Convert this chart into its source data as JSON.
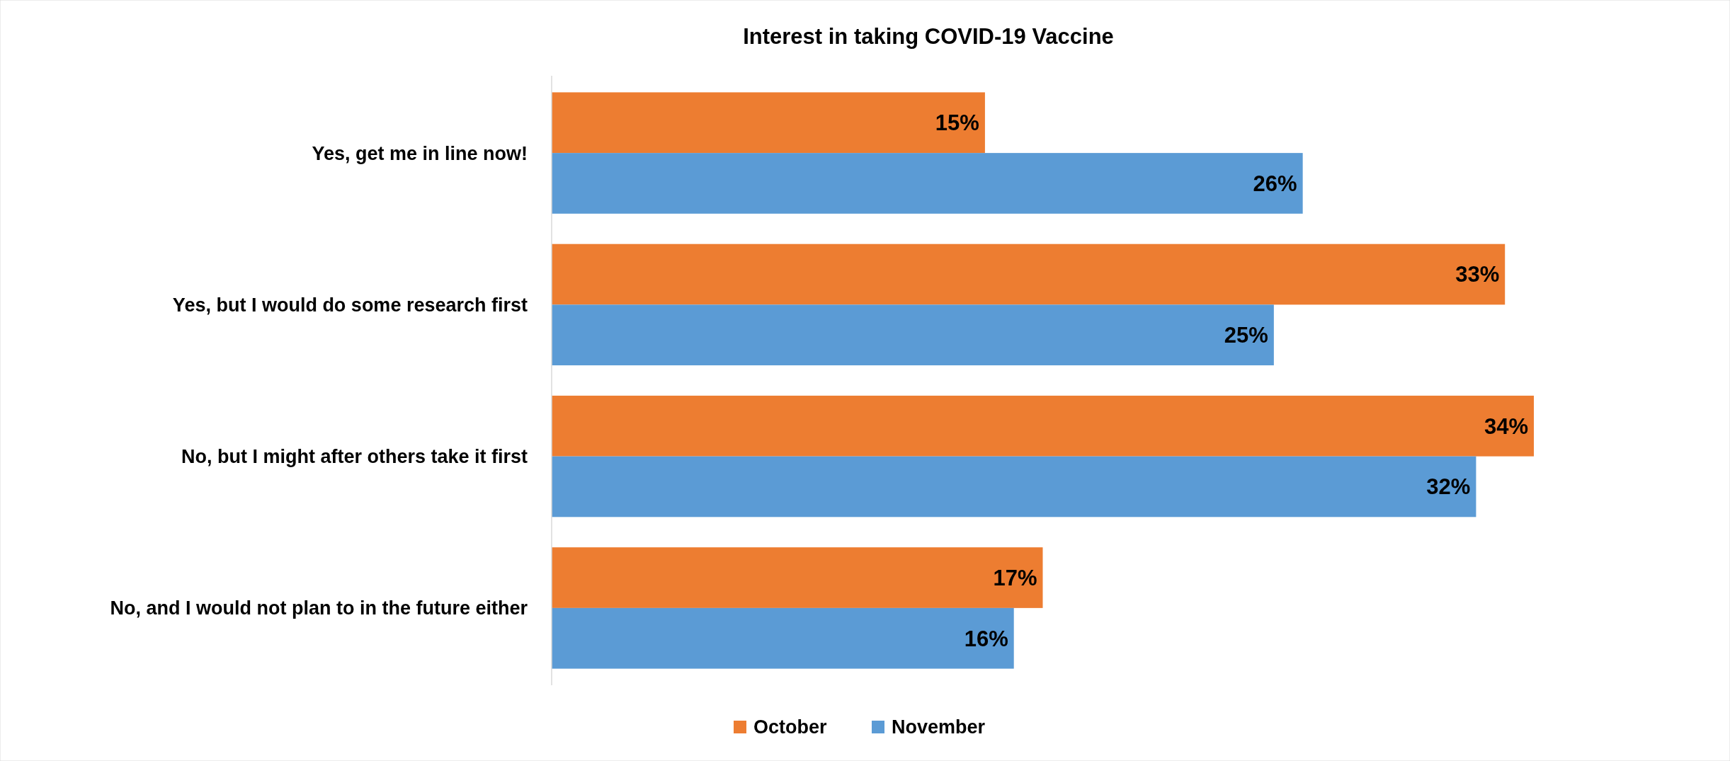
{
  "chart_data": {
    "type": "bar",
    "orientation": "horizontal",
    "title": "Interest in taking COVID-19 Vaccine",
    "categories": [
      "Yes, get me in line now!",
      "Yes, but I would do some research first",
      "No, but I might after others take it first",
      "No, and I would not plan to in the future either"
    ],
    "series": [
      {
        "name": "October",
        "color": "#ed7d31",
        "values": [
          15,
          33,
          34,
          17
        ],
        "value_labels": [
          "15%",
          "33%",
          "34%",
          "17%"
        ]
      },
      {
        "name": "November",
        "color": "#5b9bd5",
        "values": [
          26,
          25,
          32,
          16
        ],
        "value_labels": [
          "26%",
          "25%",
          "32%",
          "16%"
        ]
      }
    ],
    "legend": "bottom",
    "tick_labels": "y"
  }
}
